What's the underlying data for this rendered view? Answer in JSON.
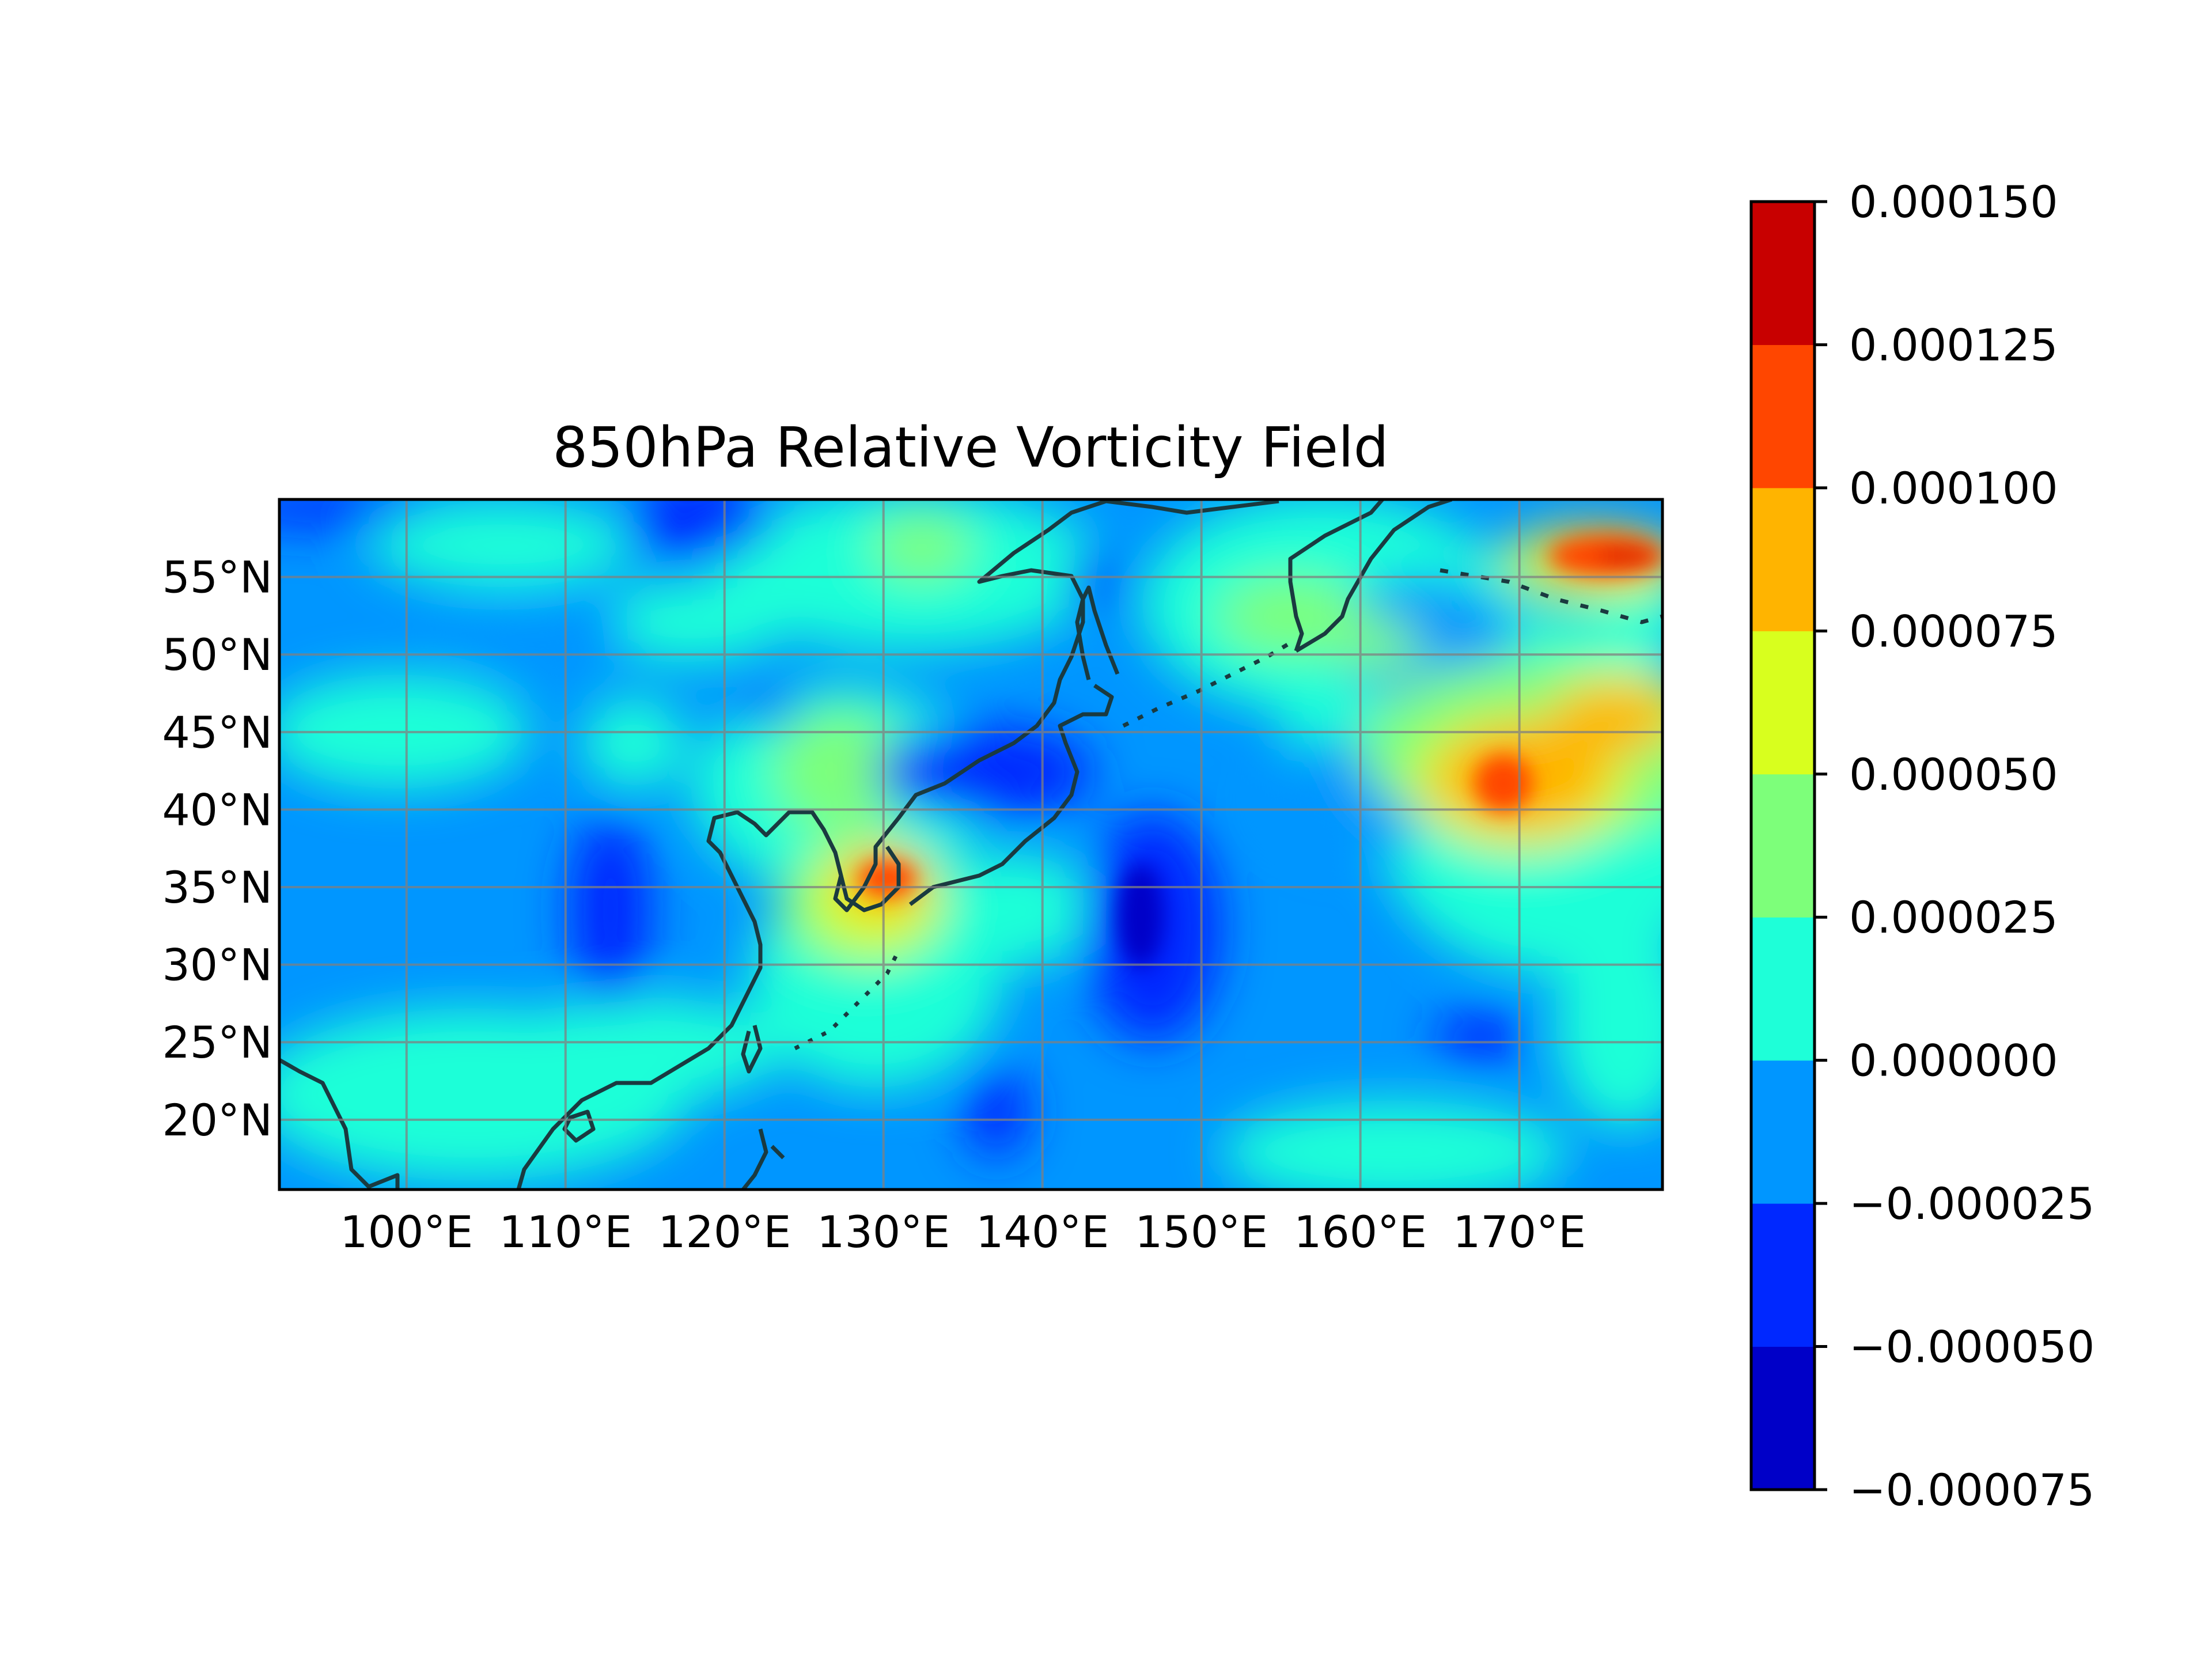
{
  "chart_data": {
    "type": "heatmap",
    "title": "850hPa Relative Vorticity Field",
    "xlabel": "",
    "ylabel": "",
    "projection": "PlateCarree",
    "lon_range": [
      92,
      179
    ],
    "lat_range": [
      15.5,
      60
    ],
    "x_ticks": [
      {
        "value": 100,
        "label": "100°E"
      },
      {
        "value": 110,
        "label": "110°E"
      },
      {
        "value": 120,
        "label": "120°E"
      },
      {
        "value": 130,
        "label": "130°E"
      },
      {
        "value": 140,
        "label": "140°E"
      },
      {
        "value": 150,
        "label": "150°E"
      },
      {
        "value": 160,
        "label": "160°E"
      },
      {
        "value": 170,
        "label": "170°E"
      }
    ],
    "y_ticks": [
      {
        "value": 20,
        "label": "20°N"
      },
      {
        "value": 25,
        "label": "25°N"
      },
      {
        "value": 30,
        "label": "30°N"
      },
      {
        "value": 35,
        "label": "35°N"
      },
      {
        "value": 40,
        "label": "40°N"
      },
      {
        "value": 45,
        "label": "45°N"
      },
      {
        "value": 50,
        "label": "50°N"
      },
      {
        "value": 55,
        "label": "55°N"
      }
    ],
    "grid": true,
    "legend": "colorbar-right",
    "colorbar": {
      "levels": [
        -7.5e-05,
        -5e-05,
        -2.5e-05,
        0,
        2.5e-05,
        5e-05,
        7.5e-05,
        0.0001,
        0.000125,
        0.00015
      ],
      "tick_labels": [
        "−0.000075",
        "−0.000050",
        "−0.000025",
        "0.000000",
        "0.000025",
        "0.000050",
        "0.000075",
        "0.000100",
        "0.000125",
        "0.000150"
      ],
      "colors": [
        "#0000c8",
        "#0028ff",
        "#0096ff",
        "#1effd8",
        "#7dff7a",
        "#d8ff1e",
        "#ffb400",
        "#ff4600",
        "#c80000"
      ]
    },
    "features": [
      {
        "name": "strong positive vorticity core",
        "lon": 172,
        "lat": 56,
        "value": 0.00014
      },
      {
        "name": "positive vorticity maximum",
        "lon": 168,
        "lat": 41.5,
        "value": 0.00011
      },
      {
        "name": "positive band east",
        "lon": 175,
        "lat": 45,
        "value": 9e-05
      },
      {
        "name": "positive vorticity over Korea/Japan",
        "lon": 130.5,
        "lat": 35,
        "value": 0.00011
      },
      {
        "name": "weak positive area",
        "lon": 130,
        "lat": 56,
        "value": 3.5e-05
      },
      {
        "name": "weak positive area",
        "lon": 154,
        "lat": 52,
        "value": 3.5e-05
      },
      {
        "name": "weak positive area",
        "lon": 163,
        "lat": 50,
        "value": 6e-05
      },
      {
        "name": "negative vorticity minimum",
        "lon": 146.5,
        "lat": 32.5,
        "value": -7e-05
      },
      {
        "name": "negative vorticity area",
        "lon": 136,
        "lat": 43,
        "value": -4e-05
      },
      {
        "name": "negative vorticity area",
        "lon": 113,
        "lat": 33,
        "value": -4e-05
      },
      {
        "name": "negative vorticity area",
        "lon": 139,
        "lat": 20.5,
        "value": -4e-05
      },
      {
        "name": "negative vorticity area",
        "lon": 170,
        "lat": 25,
        "value": -5e-05
      },
      {
        "name": "negative vorticity area",
        "lon": 120,
        "lat": 58,
        "value": -4e-05
      },
      {
        "name": "negative vorticity area",
        "lon": 142,
        "lat": 53.5,
        "value": -4e-05
      }
    ]
  }
}
